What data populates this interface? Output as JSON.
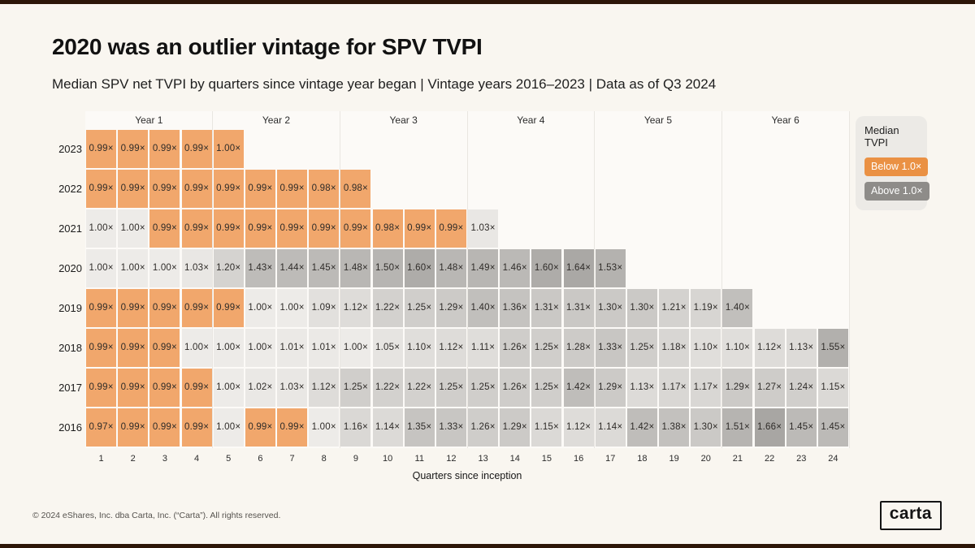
{
  "page": {
    "title": "2020 was an outlier vintage for SPV TVPI",
    "subtitle": "Median SPV net TVPI by quarters since vintage year began |  Vintage years 2016–2023  | Data as of Q3 2024",
    "footer": "© 2024 eShares, Inc. dba Carta, Inc. (“Carta”). All rights reserved.",
    "logo_text": "carta"
  },
  "legend": {
    "title": "Median TVPI",
    "below_label": "Below 1.0×",
    "above_label": "Above 1.0×",
    "below_color": "#EA9144",
    "above_color": "#8E8C89"
  },
  "chart_data": {
    "type": "heatmap",
    "title": "2020 was an outlier vintage for SPV TVPI",
    "xlabel": "Quarters since inception",
    "x_ticks": [
      "1",
      "2",
      "3",
      "4",
      "5",
      "6",
      "7",
      "8",
      "9",
      "10",
      "11",
      "12",
      "13",
      "14",
      "15",
      "16",
      "17",
      "18",
      "19",
      "20",
      "21",
      "22",
      "23",
      "24"
    ],
    "year_groups": [
      "Year 1",
      "Year 2",
      "Year 3",
      "Year 4",
      "Year 5",
      "Year 6"
    ],
    "value_suffix": "×",
    "color_scale": {
      "below_1_fill": "#F1A76C",
      "gray_min_fill": "#EDEBE8",
      "gray_max_fill": "#A8A6A3",
      "domain": [
        1.0,
        1.66
      ],
      "gamma": 0.9
    },
    "rows": [
      {
        "year": "2023",
        "values": [
          "0.99",
          "0.99",
          "0.99",
          "0.99",
          "1.00"
        ],
        "below": [
          1,
          1,
          1,
          1,
          1
        ]
      },
      {
        "year": "2022",
        "values": [
          "0.99",
          "0.99",
          "0.99",
          "0.99",
          "0.99",
          "0.99",
          "0.99",
          "0.98",
          "0.98"
        ],
        "below": [
          1,
          1,
          1,
          1,
          1,
          1,
          1,
          1,
          1
        ]
      },
      {
        "year": "2021",
        "values": [
          "1.00",
          "1.00",
          "0.99",
          "0.99",
          "0.99",
          "0.99",
          "0.99",
          "0.99",
          "0.99",
          "0.98",
          "0.99",
          "0.99",
          "1.03"
        ],
        "below": [
          0,
          0,
          1,
          1,
          1,
          1,
          1,
          1,
          1,
          1,
          1,
          1,
          0
        ]
      },
      {
        "year": "2020",
        "values": [
          "1.00",
          "1.00",
          "1.00",
          "1.03",
          "1.20",
          "1.43",
          "1.44",
          "1.45",
          "1.48",
          "1.50",
          "1.60",
          "1.48",
          "1.49",
          "1.46",
          "1.60",
          "1.64",
          "1.53"
        ],
        "below": [
          0,
          0,
          0,
          0,
          0,
          0,
          0,
          0,
          0,
          0,
          0,
          0,
          0,
          0,
          0,
          0,
          0
        ]
      },
      {
        "year": "2019",
        "values": [
          "0.99",
          "0.99",
          "0.99",
          "0.99",
          "0.99",
          "1.00",
          "1.00",
          "1.09",
          "1.12",
          "1.22",
          "1.25",
          "1.29",
          "1.40",
          "1.36",
          "1.31",
          "1.31",
          "1.30",
          "1.30",
          "1.21",
          "1.19",
          "1.40"
        ],
        "below": [
          1,
          1,
          1,
          1,
          1,
          0,
          0,
          0,
          0,
          0,
          0,
          0,
          0,
          0,
          0,
          0,
          0,
          0,
          0,
          0,
          0
        ]
      },
      {
        "year": "2018",
        "values": [
          "0.99",
          "0.99",
          "0.99",
          "1.00",
          "1.00",
          "1.00",
          "1.01",
          "1.01",
          "1.00",
          "1.05",
          "1.10",
          "1.12",
          "1.11",
          "1.26",
          "1.25",
          "1.28",
          "1.33",
          "1.25",
          "1.18",
          "1.10",
          "1.10",
          "1.12",
          "1.13",
          "1.55"
        ],
        "below": [
          1,
          1,
          1,
          0,
          0,
          0,
          0,
          0,
          0,
          0,
          0,
          0,
          0,
          0,
          0,
          0,
          0,
          0,
          0,
          0,
          0,
          0,
          0,
          0
        ]
      },
      {
        "year": "2017",
        "values": [
          "0.99",
          "0.99",
          "0.99",
          "0.99",
          "1.00",
          "1.02",
          "1.03",
          "1.12",
          "1.25",
          "1.22",
          "1.22",
          "1.25",
          "1.25",
          "1.26",
          "1.25",
          "1.42",
          "1.29",
          "1.13",
          "1.17",
          "1.17",
          "1.29",
          "1.27",
          "1.24",
          "1.15"
        ],
        "below": [
          1,
          1,
          1,
          1,
          0,
          0,
          0,
          0,
          0,
          0,
          0,
          0,
          0,
          0,
          0,
          0,
          0,
          0,
          0,
          0,
          0,
          0,
          0,
          0
        ]
      },
      {
        "year": "2016",
        "values": [
          "0.97",
          "0.99",
          "0.99",
          "0.99",
          "1.00",
          "0.99",
          "0.99",
          "1.00",
          "1.16",
          "1.14",
          "1.35",
          "1.33",
          "1.26",
          "1.29",
          "1.15",
          "1.12",
          "1.14",
          "1.42",
          "1.38",
          "1.30",
          "1.51",
          "1.66",
          "1.45",
          "1.45"
        ],
        "below": [
          1,
          1,
          1,
          1,
          0,
          1,
          1,
          0,
          0,
          0,
          0,
          0,
          0,
          0,
          0,
          0,
          0,
          0,
          0,
          0,
          0,
          0,
          0,
          0
        ]
      }
    ]
  }
}
